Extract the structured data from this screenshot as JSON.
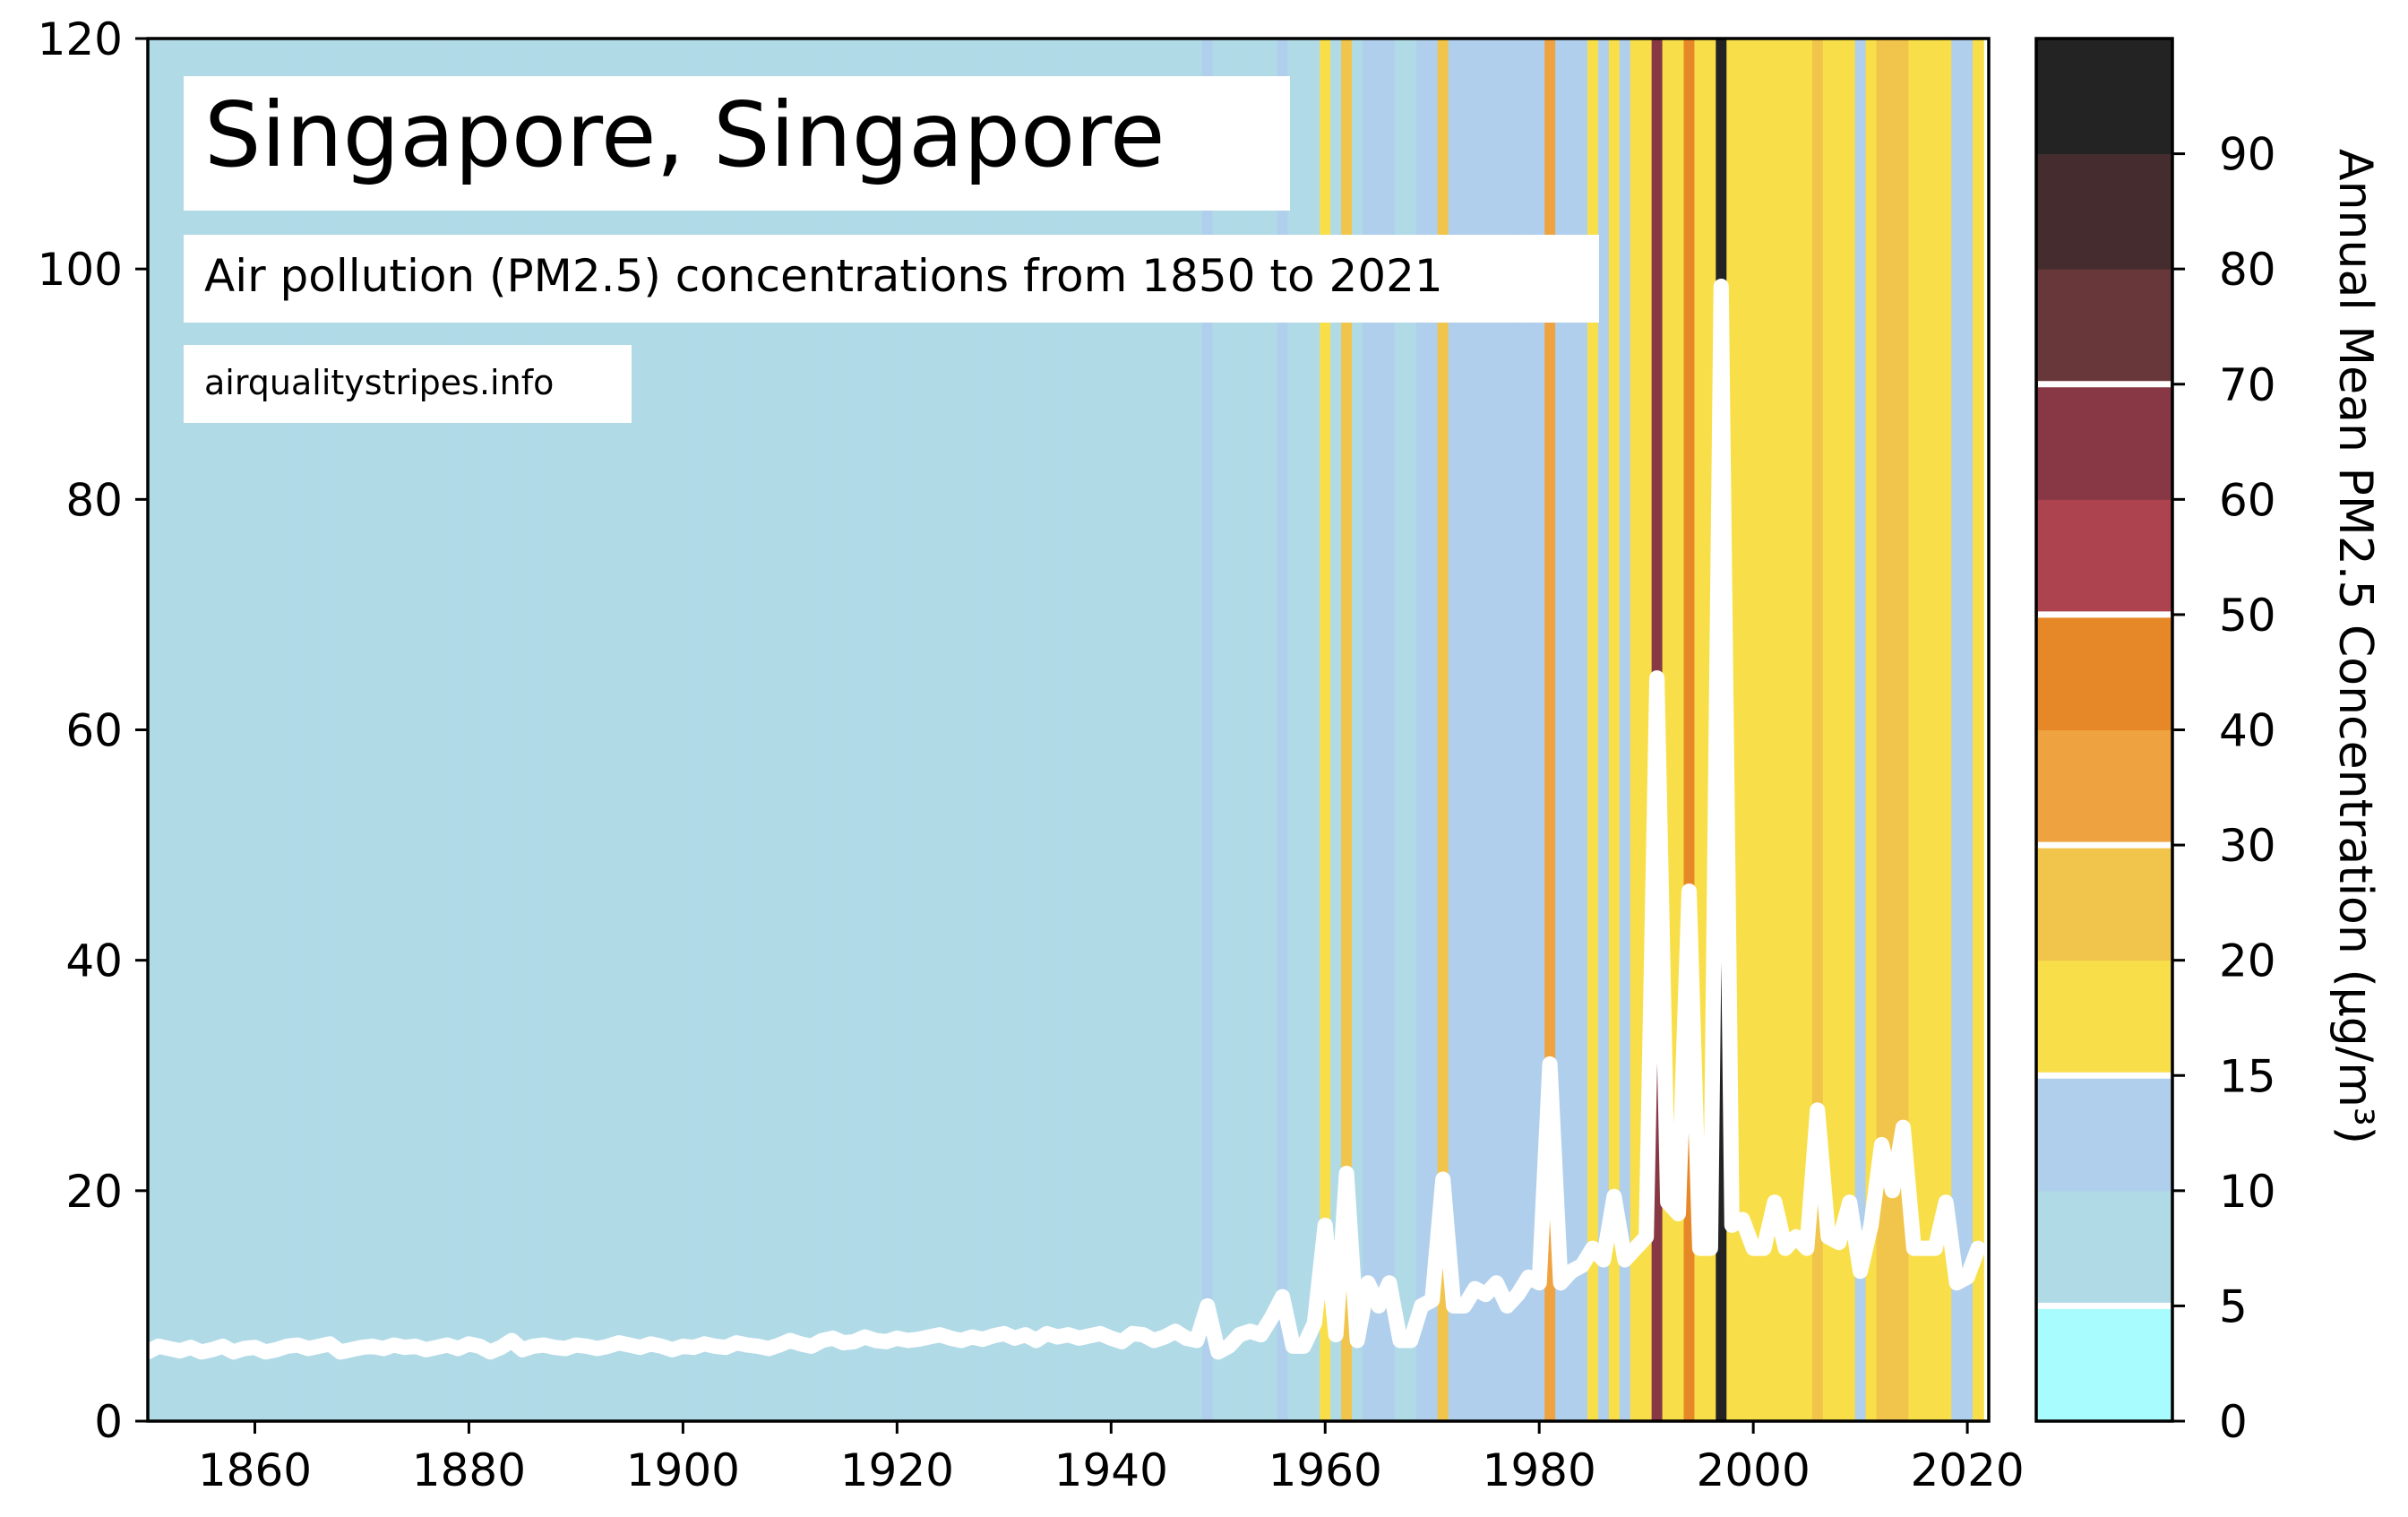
{
  "chart_data": {
    "type": "line",
    "title": "Singapore, Singapore",
    "subtitle": "Air pollution (PM2.5) concentrations from 1850 to 2021",
    "source": "airqualitystripes.info",
    "xlabel": "",
    "ylabel": "",
    "xlim": [
      1850,
      2022
    ],
    "ylim": [
      0,
      120
    ],
    "x_ticks": [
      1860,
      1880,
      1900,
      1920,
      1940,
      1960,
      1980,
      2000,
      2020
    ],
    "y_ticks": [
      0,
      20,
      40,
      60,
      80,
      100,
      120
    ],
    "grid": false,
    "background_stripes": "one vertical stripe per year coloured by the annual mean PM2.5 value using the colorbar bins",
    "line_color": "#ffffff",
    "series": [
      {
        "x": [
          1850,
          1851,
          1852,
          1853,
          1854,
          1855,
          1856,
          1857,
          1858,
          1859,
          1860,
          1861,
          1862,
          1863,
          1864,
          1865,
          1866,
          1867,
          1868,
          1869,
          1870,
          1871,
          1872,
          1873,
          1874,
          1875,
          1876,
          1877,
          1878,
          1879,
          1880,
          1881,
          1882,
          1883,
          1884,
          1885,
          1886,
          1887,
          1888,
          1889,
          1890,
          1891,
          1892,
          1893,
          1894,
          1895,
          1896,
          1897,
          1898,
          1899,
          1900,
          1901,
          1902,
          1903,
          1904,
          1905,
          1906,
          1907,
          1908,
          1909,
          1910,
          1911,
          1912,
          1913,
          1914,
          1915,
          1916,
          1917,
          1918,
          1919,
          1920,
          1921,
          1922,
          1923,
          1924,
          1925,
          1926,
          1927,
          1928,
          1929,
          1930,
          1931,
          1932,
          1933,
          1934,
          1935,
          1936,
          1937,
          1938,
          1939,
          1940,
          1941,
          1942,
          1943,
          1944,
          1945,
          1946,
          1947,
          1948,
          1949,
          1950,
          1951,
          1952,
          1953,
          1954,
          1955,
          1956,
          1957,
          1958,
          1959,
          1960,
          1961,
          1962,
          1963,
          1964,
          1965,
          1966,
          1967,
          1968,
          1969,
          1970,
          1971,
          1972,
          1973,
          1974,
          1975,
          1976,
          1977,
          1978,
          1979,
          1980,
          1981,
          1982,
          1983,
          1984,
          1985,
          1986,
          1987,
          1988,
          1989,
          1990,
          1991,
          1992,
          1993,
          1994,
          1995,
          1996,
          1997,
          1998,
          1999,
          2000,
          2001,
          2002,
          2003,
          2004,
          2005,
          2006,
          2007,
          2008,
          2009,
          2010,
          2011,
          2012,
          2013,
          2014,
          2015,
          2016,
          2017,
          2018,
          2019,
          2020,
          2021
        ],
        "values": [
          6.0,
          6.5,
          6.3,
          6.1,
          6.4,
          6.0,
          6.2,
          6.5,
          6.0,
          6.3,
          6.4,
          6.0,
          6.2,
          6.5,
          6.6,
          6.3,
          6.5,
          6.7,
          6.0,
          6.2,
          6.4,
          6.5,
          6.3,
          6.6,
          6.4,
          6.5,
          6.2,
          6.4,
          6.6,
          6.3,
          6.7,
          6.5,
          6.0,
          6.4,
          7.0,
          6.2,
          6.5,
          6.6,
          6.4,
          6.3,
          6.6,
          6.5,
          6.3,
          6.5,
          6.8,
          6.6,
          6.4,
          6.7,
          6.5,
          6.2,
          6.5,
          6.4,
          6.7,
          6.5,
          6.4,
          6.8,
          6.6,
          6.5,
          6.3,
          6.6,
          7.0,
          6.7,
          6.5,
          7.0,
          7.2,
          6.8,
          6.9,
          7.3,
          7.0,
          6.9,
          7.2,
          7.0,
          7.1,
          7.3,
          7.5,
          7.2,
          7.0,
          7.3,
          7.1,
          7.4,
          7.6,
          7.2,
          7.5,
          7.0,
          7.6,
          7.3,
          7.5,
          7.2,
          7.4,
          7.6,
          7.2,
          6.9,
          7.6,
          7.5,
          7.0,
          7.3,
          7.8,
          7.2,
          7.0,
          10.0,
          6.0,
          6.5,
          7.5,
          7.8,
          7.5,
          9.0,
          10.8,
          6.5,
          6.5,
          8.5,
          17.0,
          7.5,
          21.5,
          7.0,
          12.0,
          10.0,
          12.0,
          7.0,
          7.0,
          10.0,
          10.5,
          21.0,
          10.0,
          10.0,
          11.5,
          11.0,
          12.0,
          10.0,
          11.0,
          12.5,
          12.0,
          31.0,
          12.0,
          13.0,
          13.5,
          15.0,
          14.0,
          19.5,
          14.0,
          15.0,
          16.0,
          64.5,
          19.0,
          18.0,
          46.0,
          15.0,
          15.0,
          98.5,
          17.0,
          17.5,
          15.0,
          15.0,
          19.0,
          15.0,
          16.0,
          15.0,
          27.0,
          16.0,
          15.5,
          19.0,
          13.0,
          17.0,
          24.0,
          20.0,
          25.5,
          15.0,
          15.0,
          15.0,
          19.0,
          12.0,
          12.5,
          15.0
        ]
      }
    ],
    "colorbar": {
      "label": "Annual Mean PM2.5 Concentration (µg/m³)",
      "ticks": [
        "0",
        "5",
        "10",
        "15",
        "20",
        "30",
        "40",
        "50",
        "60",
        "70",
        "80",
        "90"
      ],
      "bins": [
        {
          "min": 0,
          "max": 5,
          "color": "#a9fcfd"
        },
        {
          "min": 5,
          "max": 10,
          "color": "#b1dae7"
        },
        {
          "min": 10,
          "max": 15,
          "color": "#b0cfec"
        },
        {
          "min": 15,
          "max": 20,
          "color": "#f8df4a"
        },
        {
          "min": 20,
          "max": 30,
          "color": "#f1c54b"
        },
        {
          "min": 30,
          "max": 40,
          "color": "#efa340"
        },
        {
          "min": 40,
          "max": 50,
          "color": "#e78828"
        },
        {
          "min": 50,
          "max": 60,
          "color": "#ae4350"
        },
        {
          "min": 60,
          "max": 70,
          "color": "#873844"
        },
        {
          "min": 70,
          "max": 80,
          "color": "#68373a"
        },
        {
          "min": 80,
          "max": 90,
          "color": "#452d2f"
        },
        {
          "min": 90,
          "max": 100,
          "color": "#232323"
        }
      ]
    }
  }
}
